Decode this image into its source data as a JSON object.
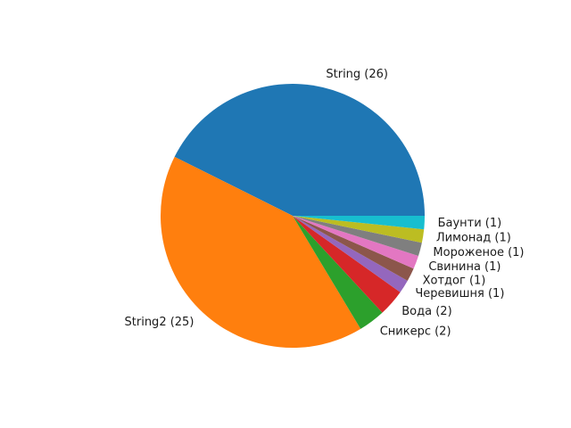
{
  "chart_data": {
    "type": "pie",
    "start_angle": 0,
    "direction": "counterclockwise",
    "slices": [
      {
        "label": "String (26)",
        "value": 26,
        "color": "#1f77b4"
      },
      {
        "label": "String2 (25)",
        "value": 25,
        "color": "#ff7f0e"
      },
      {
        "label": "Сникерс (2)",
        "value": 2,
        "color": "#2ca02c"
      },
      {
        "label": "Вода (2)",
        "value": 2,
        "color": "#d62728"
      },
      {
        "label": "Черевишня (1)",
        "value": 1,
        "color": "#9467bd"
      },
      {
        "label": "Хотдог (1)",
        "value": 1,
        "color": "#8c564b"
      },
      {
        "label": "Свинина (1)",
        "value": 1,
        "color": "#e377c2"
      },
      {
        "label": "Мороженое (1)",
        "value": 1,
        "color": "#7f7f7f"
      },
      {
        "label": "Лимонад (1)",
        "value": 1,
        "color": "#bcbd22"
      },
      {
        "label": "Баунти (1)",
        "value": 1,
        "color": "#17becf"
      }
    ]
  }
}
